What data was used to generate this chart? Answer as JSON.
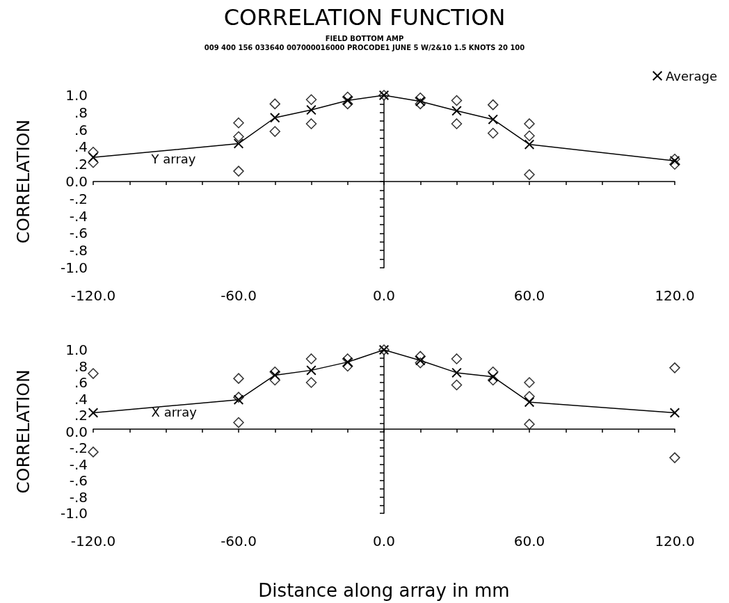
{
  "chart_data": [
    {
      "type": "line",
      "title": "CORRELATION FUNCTION",
      "subtitle": "FIELD BOTTOM AMP\n009 400 156 033640 007000016000 PROCODE1 JUNE 5 W/2&10 1.5 KNOTS 20 100",
      "ylabel": "CORRELATION",
      "legend": "top right",
      "x": [
        -120,
        -60,
        -45,
        -30,
        -15,
        0,
        15,
        30,
        45,
        60,
        120
      ],
      "series": [
        {
          "name": "Average",
          "type": "line",
          "color": "#000000",
          "marker": "cross",
          "values": [
            0.28,
            0.44,
            0.74,
            0.83,
            0.94,
            1.0,
            0.93,
            0.82,
            0.72,
            0.43,
            0.24
          ]
        },
        {
          "type": "scatter",
          "color": "#000000",
          "marker": "diamond",
          "x": [
            -120,
            -120,
            -60,
            -60,
            -60,
            -45,
            -45,
            -30,
            -30,
            -15,
            -15,
            0,
            15,
            15,
            30,
            30,
            45,
            45,
            60,
            60,
            60,
            120,
            120
          ],
          "values": [
            0.34,
            0.22,
            0.68,
            0.52,
            0.12,
            0.9,
            0.58,
            0.95,
            0.67,
            0.98,
            0.9,
            1.0,
            0.97,
            0.9,
            0.94,
            0.67,
            0.89,
            0.56,
            0.67,
            0.53,
            0.08,
            0.26,
            0.2
          ]
        }
      ],
      "xlim": [
        -120,
        120
      ],
      "xticks": [
        {
          "value": -120,
          "label": "-120.0"
        },
        {
          "value": -105,
          "label": null
        },
        {
          "value": -90,
          "label": null
        },
        {
          "value": -75,
          "label": null
        },
        {
          "value": -60,
          "label": "-60.0"
        },
        {
          "value": -45,
          "label": null
        },
        {
          "value": -30,
          "label": null
        },
        {
          "value": -15,
          "label": null
        },
        {
          "value": 0,
          "label": "0.0"
        },
        {
          "value": 15,
          "label": null
        },
        {
          "value": 30,
          "label": null
        },
        {
          "value": 45,
          "label": null
        },
        {
          "value": 60,
          "label": "60.0"
        },
        {
          "value": 75,
          "label": null
        },
        {
          "value": 90,
          "label": null
        },
        {
          "value": 105,
          "label": null
        },
        {
          "value": 120,
          "label": "120.0"
        }
      ],
      "ylim": [
        -1,
        1
      ],
      "yticks": [
        {
          "value": -1,
          "label": "-1.0"
        },
        {
          "value": -0.9,
          "label": null
        },
        {
          "value": -0.8,
          "label": "-.8"
        },
        {
          "value": -0.7,
          "label": null
        },
        {
          "value": -0.6,
          "label": "-.6"
        },
        {
          "value": -0.5,
          "label": null
        },
        {
          "value": -0.4,
          "label": "-.4"
        },
        {
          "value": -0.3,
          "label": null
        },
        {
          "value": -0.2,
          "label": "-.2"
        },
        {
          "value": -0.1,
          "label": null
        },
        {
          "value": 0,
          "label": "0.0"
        },
        {
          "value": 0.1,
          "label": null
        },
        {
          "value": 0.2,
          "label": ".2"
        },
        {
          "value": 0.3,
          "label": null
        },
        {
          "value": 0.4,
          "label": ".4"
        },
        {
          "value": 0.5,
          "label": null
        },
        {
          "value": 0.6,
          "label": ".6"
        },
        {
          "value": 0.7,
          "label": null
        },
        {
          "value": 0.8,
          "label": ".8"
        },
        {
          "value": 0.9,
          "label": null
        },
        {
          "value": 1,
          "label": "1.0"
        }
      ],
      "annotations": [
        "Y array"
      ]
    },
    {
      "type": "line",
      "ylabel": "CORRELATION",
      "xlabel": "Distance along array in mm",
      "x": [
        -120,
        -60,
        -45,
        -30,
        -15,
        0,
        15,
        30,
        45,
        60,
        120
      ],
      "series": [
        {
          "type": "line",
          "color": "#000000",
          "marker": "cross",
          "values": [
            0.23,
            0.39,
            0.69,
            0.75,
            0.85,
            1.0,
            0.87,
            0.72,
            0.67,
            0.36,
            0.23
          ]
        },
        {
          "type": "scatter",
          "color": "#000000",
          "marker": "diamond",
          "x": [
            -120,
            -120,
            -60,
            -60,
            -60,
            -45,
            -45,
            -30,
            -30,
            -15,
            -15,
            0,
            15,
            15,
            30,
            30,
            45,
            45,
            60,
            60,
            60,
            120,
            120
          ],
          "values": [
            0.71,
            -0.25,
            0.65,
            0.42,
            0.11,
            0.73,
            0.63,
            0.89,
            0.6,
            0.89,
            0.8,
            1.0,
            0.92,
            0.84,
            0.89,
            0.57,
            0.73,
            0.63,
            0.6,
            0.43,
            0.09,
            0.78,
            -0.32
          ]
        }
      ],
      "xlim": [
        -120,
        120
      ],
      "xticks": [
        {
          "value": -120,
          "label": "-120.0"
        },
        {
          "value": -105,
          "label": null
        },
        {
          "value": -90,
          "label": null
        },
        {
          "value": -75,
          "label": null
        },
        {
          "value": -60,
          "label": "-60.0"
        },
        {
          "value": -45,
          "label": null
        },
        {
          "value": -30,
          "label": null
        },
        {
          "value": -15,
          "label": null
        },
        {
          "value": 0,
          "label": "0.0"
        },
        {
          "value": 15,
          "label": null
        },
        {
          "value": 30,
          "label": null
        },
        {
          "value": 45,
          "label": null
        },
        {
          "value": 60,
          "label": "60.0"
        },
        {
          "value": 75,
          "label": null
        },
        {
          "value": 90,
          "label": null
        },
        {
          "value": 105,
          "label": null
        },
        {
          "value": 120,
          "label": "120.0"
        }
      ],
      "ylim": [
        -1,
        1
      ],
      "yticks": [
        {
          "value": -1,
          "label": "-1.0"
        },
        {
          "value": -0.9,
          "label": null
        },
        {
          "value": -0.8,
          "label": "-.8"
        },
        {
          "value": -0.7,
          "label": null
        },
        {
          "value": -0.6,
          "label": "-.6"
        },
        {
          "value": -0.5,
          "label": null
        },
        {
          "value": -0.4,
          "label": "-.4"
        },
        {
          "value": -0.3,
          "label": null
        },
        {
          "value": -0.2,
          "label": "-.2"
        },
        {
          "value": -0.1,
          "label": null
        },
        {
          "value": 0,
          "label": "0.0"
        },
        {
          "value": 0.1,
          "label": null
        },
        {
          "value": 0.2,
          "label": ".2"
        },
        {
          "value": 0.3,
          "label": null
        },
        {
          "value": 0.4,
          "label": ".4"
        },
        {
          "value": 0.5,
          "label": null
        },
        {
          "value": 0.6,
          "label": ".6"
        },
        {
          "value": 0.7,
          "label": null
        },
        {
          "value": 0.8,
          "label": ".8"
        },
        {
          "value": 0.9,
          "label": null
        },
        {
          "value": 1,
          "label": "1.0"
        }
      ],
      "annotations": [
        "X array"
      ]
    }
  ]
}
